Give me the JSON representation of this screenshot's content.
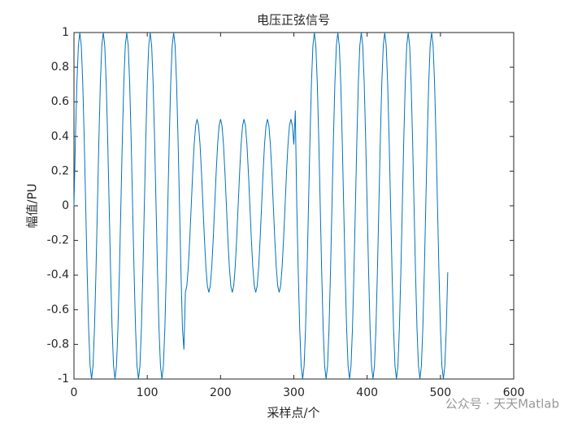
{
  "chart_data": {
    "type": "line",
    "title": "电压正弦信号",
    "xlabel": "采样点/个",
    "ylabel": "幅值/PU",
    "watermark": "公众号 · 天天Matlab",
    "color": "#0072bd",
    "x": [
      0,
      2,
      4,
      6,
      8,
      10,
      12,
      14,
      16,
      18,
      20,
      22,
      24,
      26,
      28,
      30,
      32,
      34,
      36,
      38,
      40,
      42,
      44,
      46,
      48,
      50,
      52,
      54,
      56,
      58,
      60,
      62,
      64,
      66,
      68,
      70,
      72,
      74,
      76,
      78,
      80,
      82,
      84,
      86,
      88,
      90,
      92,
      94,
      96,
      98,
      100,
      102,
      104,
      106,
      108,
      110,
      112,
      114,
      116,
      118,
      120,
      122,
      124,
      126,
      128,
      130,
      132,
      134,
      136,
      138,
      140,
      142,
      144,
      146,
      148,
      150,
      152,
      154,
      156,
      158,
      160,
      162,
      164,
      166,
      168,
      170,
      172,
      174,
      176,
      178,
      180,
      182,
      184,
      186,
      188,
      190,
      192,
      194,
      196,
      198,
      200,
      202,
      204,
      206,
      208,
      210,
      212,
      214,
      216,
      218,
      220,
      222,
      224,
      226,
      228,
      230,
      232,
      234,
      236,
      238,
      240,
      242,
      244,
      246,
      248,
      250,
      252,
      254,
      256,
      258,
      260,
      262,
      264,
      266,
      268,
      270,
      272,
      274,
      276,
      278,
      280,
      282,
      284,
      286,
      288,
      290,
      292,
      294,
      296,
      298,
      300,
      302,
      304,
      306,
      308,
      310,
      312,
      314,
      316,
      318,
      320,
      322,
      324,
      326,
      328,
      330,
      332,
      334,
      336,
      338,
      340,
      342,
      344,
      346,
      348,
      350,
      352,
      354,
      356,
      358,
      360,
      362,
      364,
      366,
      368,
      370,
      372,
      374,
      376,
      378,
      380,
      382,
      384,
      386,
      388,
      390,
      392,
      394,
      396,
      398,
      400,
      402,
      404,
      406,
      408,
      410,
      412,
      414,
      416,
      418,
      420,
      422,
      424,
      426,
      428,
      430,
      432,
      434,
      436,
      438,
      440,
      442,
      444,
      446,
      448,
      450,
      452,
      454,
      456,
      458,
      460,
      462,
      464,
      466,
      468,
      470,
      472,
      474,
      476,
      478,
      480,
      482,
      484,
      486,
      488,
      490,
      492,
      494,
      496,
      498,
      500,
      502,
      504,
      506,
      508,
      510
    ],
    "values": [
      0,
      0.383,
      0.707,
      0.924,
      1,
      0.924,
      0.707,
      0.383,
      0,
      -0.383,
      -0.707,
      -0.924,
      -1,
      -0.924,
      -0.707,
      -0.383,
      0,
      0.383,
      0.707,
      0.924,
      1,
      0.924,
      0.707,
      0.383,
      0,
      -0.383,
      -0.707,
      -0.924,
      -1,
      -0.924,
      -0.707,
      -0.383,
      0,
      0.383,
      0.707,
      0.924,
      1,
      0.924,
      0.707,
      0.383,
      0,
      -0.383,
      -0.707,
      -0.924,
      -1,
      -0.924,
      -0.707,
      -0.383,
      0,
      0.383,
      0.707,
      0.924,
      1,
      0.924,
      0.707,
      0.383,
      0,
      -0.383,
      -0.707,
      -0.924,
      -1,
      -0.924,
      -0.707,
      -0.383,
      0,
      0.383,
      0.707,
      0.924,
      1,
      0.924,
      0.707,
      0.383,
      0,
      -0.383,
      -0.707,
      -0.83,
      -0.5,
      -0.462,
      -0.354,
      -0.191,
      0,
      0.191,
      0.354,
      0.462,
      0.5,
      0.462,
      0.354,
      0.191,
      0,
      -0.191,
      -0.354,
      -0.462,
      -0.5,
      -0.462,
      -0.354,
      -0.191,
      0,
      0.191,
      0.354,
      0.462,
      0.5,
      0.462,
      0.354,
      0.191,
      0,
      -0.191,
      -0.354,
      -0.462,
      -0.5,
      -0.462,
      -0.354,
      -0.191,
      0,
      0.191,
      0.354,
      0.462,
      0.5,
      0.462,
      0.354,
      0.191,
      0,
      -0.191,
      -0.354,
      -0.462,
      -0.5,
      -0.462,
      -0.354,
      -0.191,
      0,
      0.191,
      0.354,
      0.462,
      0.5,
      0.462,
      0.354,
      0.191,
      0,
      -0.191,
      -0.354,
      -0.462,
      -0.5,
      -0.462,
      -0.354,
      -0.191,
      0,
      0.191,
      0.354,
      0.462,
      0.5,
      0.462,
      0.354,
      0.55,
      0,
      -0.383,
      -0.707,
      -0.924,
      -1,
      -0.924,
      -0.707,
      -0.383,
      0,
      0.383,
      0.707,
      0.924,
      1,
      0.924,
      0.707,
      0.383,
      0,
      -0.383,
      -0.707,
      -0.924,
      -1,
      -0.924,
      -0.707,
      -0.383,
      0,
      0.383,
      0.707,
      0.924,
      1,
      0.924,
      0.707,
      0.383,
      0,
      -0.383,
      -0.707,
      -0.924,
      -1,
      -0.924,
      -0.707,
      -0.383,
      0,
      0.383,
      0.707,
      0.924,
      1,
      0.924,
      0.707,
      0.383,
      0,
      -0.383,
      -0.707,
      -0.924,
      -1,
      -0.924,
      -0.707,
      -0.383,
      0,
      0.383,
      0.707,
      0.924,
      1,
      0.924,
      0.707,
      0.383,
      0,
      -0.383,
      -0.707,
      -0.924,
      -1,
      -0.924,
      -0.707,
      -0.383,
      0,
      0.383,
      0.707,
      0.924,
      1,
      0.924,
      0.707,
      0.383,
      0,
      -0.383,
      -0.707,
      -0.924,
      -1,
      -0.924,
      -0.707,
      -0.383,
      0,
      0.383,
      0.707,
      0.924,
      1,
      0.924,
      0.707,
      0.383,
      0,
      -0.383,
      -0.707,
      -0.924,
      -1,
      -0.924,
      -0.707,
      -0.383
    ],
    "xlim": [
      0,
      600
    ],
    "xticks": [
      0,
      100,
      200,
      300,
      400,
      500,
      600
    ],
    "ylim": [
      -1,
      1
    ],
    "yticks": [
      -1,
      -0.8,
      -0.6,
      -0.4,
      -0.2,
      0,
      0.2,
      0.4,
      0.6,
      0.8,
      1
    ]
  }
}
